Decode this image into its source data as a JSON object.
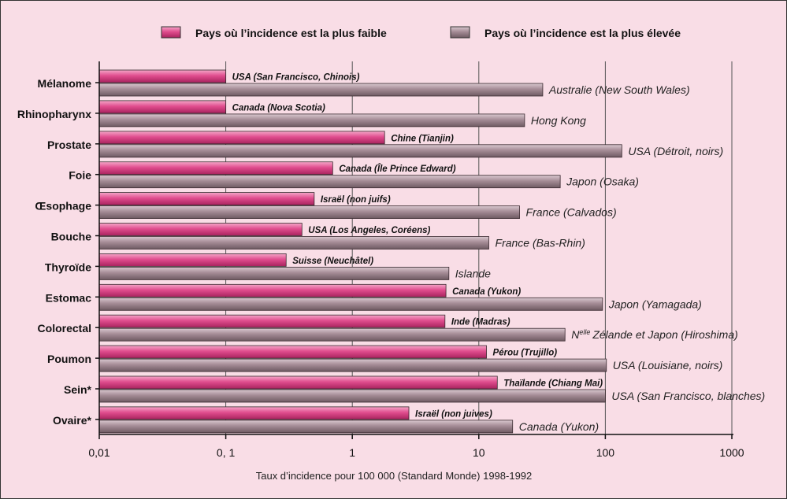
{
  "chart_data": {
    "type": "bar",
    "orientation": "horizontal",
    "scale": "log",
    "xlim": [
      0.01,
      1000
    ],
    "xticks": [
      0.01,
      0.1,
      1,
      10,
      100,
      1000
    ],
    "xtick_labels": [
      "0,01",
      "0, 1",
      "1",
      "10",
      "100",
      "1000"
    ],
    "xlabel": "Taux d’incidence pour 100 000 (Standard Monde) 1998-1992",
    "legend_position": "top",
    "categories": [
      "Mélanome",
      "Rhinopharynx",
      "Prostate",
      "Foie",
      "Œsophage",
      "Bouche",
      "Thyroïde",
      "Estomac",
      "Colorectal",
      "Poumon",
      "Sein*",
      "Ovaire*"
    ],
    "series": [
      {
        "name": "Pays où l’incidence est la plus faible",
        "color": "#e0508f",
        "values": [
          0.1,
          0.1,
          1.8,
          0.7,
          0.5,
          0.4,
          0.3,
          5.5,
          5.4,
          11.5,
          14,
          2.8
        ],
        "labels": [
          "USA (San Francisco, Chinois)",
          "Canada (Nova Scotia)",
          "Chine (Tianjin)",
          "Canada (Île Prince Edward)",
          "Israël (non juifs)",
          "USA (Los Angeles, Coréens)",
          "Suisse (Neuchâtel)",
          "Canada (Yukon)",
          "Inde (Madras)",
          "Pérou (Trujillo)",
          "Thaïlande (Chiang Mai)",
          "Israël (non juives)"
        ]
      },
      {
        "name": "Pays où l’incidence est la plus élevée",
        "color": "#a88e97",
        "values": [
          32,
          23,
          135,
          44,
          21,
          12,
          5.8,
          95,
          48,
          102,
          100,
          18.5
        ],
        "labels": [
          "Australie (New South Wales)",
          "Hong Kong",
          "USA (Détroit, noirs)",
          "Japon (Osaka)",
          "France (Calvados)",
          "France (Bas-Rhin)",
          "Islande",
          "Japon (Yamagada)",
          "Zélande et Japon (Hiroshima)",
          "USA (Louisiane, noirs)",
          "USA (San Francisco, blanches)",
          "Canada (Yukon)"
        ]
      }
    ],
    "nz_prefix": "N",
    "nz_sup": "elle"
  }
}
